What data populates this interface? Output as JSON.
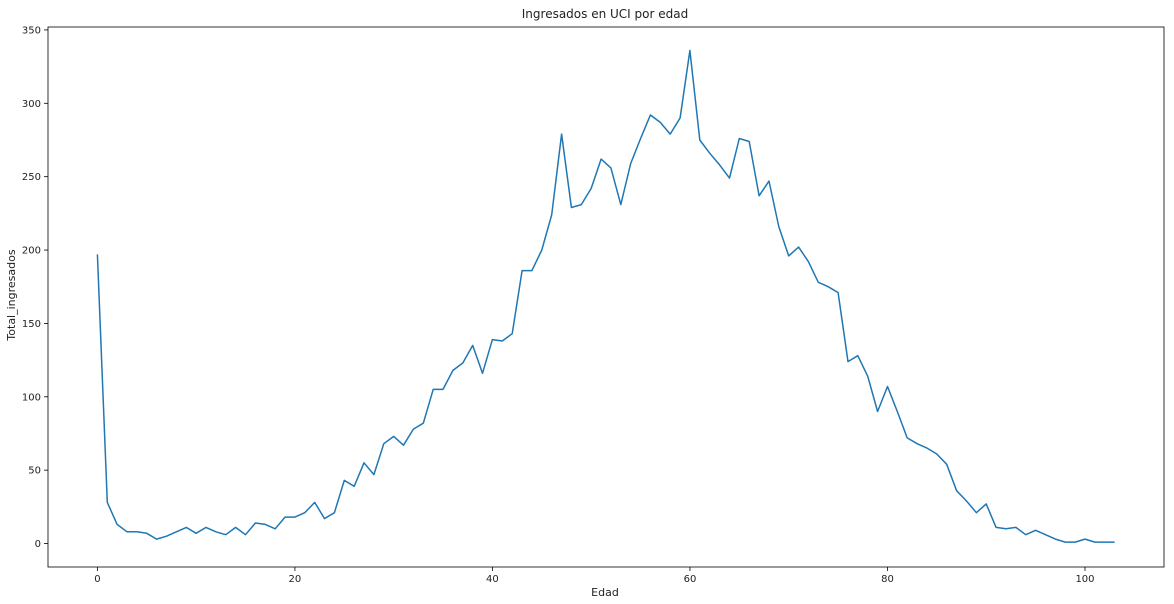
{
  "chart_data": {
    "type": "line",
    "title": "Ingresados en UCI por edad",
    "xlabel": "Edad",
    "ylabel": "Total_ingresados",
    "xlim": [
      -5,
      108
    ],
    "ylim": [
      -16,
      352
    ],
    "xticks": [
      0,
      20,
      40,
      60,
      80,
      100
    ],
    "yticks": [
      0,
      50,
      100,
      150,
      200,
      250,
      300,
      350
    ],
    "grid": false,
    "legend": "none",
    "series": [
      {
        "color": "#1f77b4",
        "x": [
          0,
          1,
          2,
          3,
          4,
          5,
          6,
          7,
          8,
          9,
          10,
          11,
          12,
          13,
          14,
          15,
          16,
          17,
          18,
          19,
          20,
          21,
          22,
          23,
          24,
          25,
          26,
          27,
          28,
          29,
          30,
          31,
          32,
          33,
          34,
          35,
          36,
          37,
          38,
          39,
          40,
          41,
          42,
          43,
          44,
          45,
          46,
          47,
          48,
          49,
          50,
          51,
          52,
          53,
          54,
          55,
          56,
          57,
          58,
          59,
          60,
          61,
          62,
          63,
          64,
          65,
          66,
          67,
          68,
          69,
          70,
          71,
          72,
          73,
          74,
          75,
          76,
          77,
          78,
          79,
          80,
          81,
          82,
          83,
          84,
          85,
          86,
          87,
          88,
          89,
          90,
          91,
          92,
          93,
          94,
          95,
          96,
          97,
          98,
          99,
          100,
          101,
          102,
          103
        ],
        "y": [
          197,
          28,
          13,
          8,
          8,
          7,
          3,
          5,
          8,
          11,
          7,
          11,
          8,
          6,
          11,
          6,
          14,
          13,
          10,
          18,
          18,
          21,
          28,
          17,
          21,
          43,
          39,
          55,
          47,
          68,
          73,
          67,
          78,
          82,
          105,
          105,
          118,
          123,
          135,
          116,
          139,
          138,
          143,
          186,
          186,
          200,
          224,
          279,
          229,
          231,
          242,
          262,
          256,
          231,
          259,
          276,
          292,
          287,
          279,
          290,
          336,
          275,
          266,
          258,
          249,
          276,
          274,
          237,
          247,
          216,
          196,
          202,
          192,
          178,
          175,
          171,
          124,
          128,
          114,
          90,
          107,
          90,
          72,
          68,
          65,
          61,
          54,
          36,
          29,
          21,
          27,
          11,
          10,
          11,
          6,
          9,
          6,
          3,
          1,
          1,
          3,
          1,
          1,
          1
        ]
      }
    ]
  }
}
